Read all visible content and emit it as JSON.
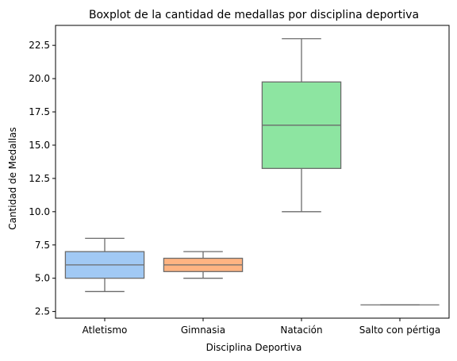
{
  "chart_data": {
    "type": "boxplot",
    "title": "Boxplot de la cantidad de medallas por disciplina deportiva",
    "xlabel": "Disciplina Deportiva",
    "ylabel": "Cantidad de Medallas",
    "ylim": [
      2.0,
      24.0
    ],
    "yticks": [
      2.5,
      5.0,
      7.5,
      10.0,
      12.5,
      15.0,
      17.5,
      20.0,
      22.5
    ],
    "ytick_labels": [
      "2.5",
      "5.0",
      "7.5",
      "10.0",
      "12.5",
      "15.0",
      "17.5",
      "20.0",
      "22.5"
    ],
    "grid": false,
    "categories": [
      "Atletismo",
      "Gimnasia",
      "Natación",
      "Salto con pértiga"
    ],
    "boxes": [
      {
        "category": "Atletismo",
        "whisker_low": 4.0,
        "q1": 5.0,
        "median": 6.0,
        "q3": 7.0,
        "whisker_high": 8.0
      },
      {
        "category": "Gimnasia",
        "whisker_low": 5.0,
        "q1": 5.5,
        "median": 6.0,
        "q3": 6.5,
        "whisker_high": 7.0
      },
      {
        "category": "Natación",
        "whisker_low": 10.0,
        "q1": 13.25,
        "median": 16.5,
        "q3": 19.75,
        "whisker_high": 23.0
      },
      {
        "category": "Salto con pértiga",
        "whisker_low": 3.0,
        "q1": 3.0,
        "median": 3.0,
        "q3": 3.0,
        "whisker_high": 3.0
      }
    ],
    "colors": [
      "#a1c9f4",
      "#ffb482",
      "#8de5a1",
      "#ff9f9b"
    ],
    "line_color": "#6b6b6b"
  }
}
